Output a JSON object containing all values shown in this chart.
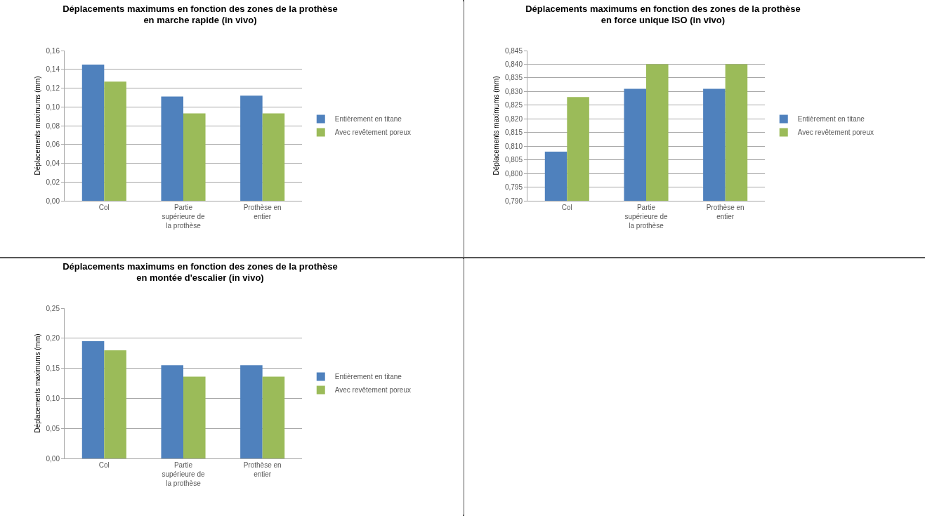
{
  "chart_data": [
    {
      "type": "bar",
      "title": "Déplacements maximums en fonction des zones de la prothèse en marche rapide (in vivo)",
      "ylabel": "Déplacements maximums (mm)",
      "categories": [
        "Col",
        "Partie supérieure de la prothèse",
        "Prothèse en entier"
      ],
      "series": [
        {
          "name": "Entièrement en titane",
          "color": "#4f81bd",
          "values": [
            0.145,
            0.111,
            0.112
          ]
        },
        {
          "name": "Avec revêtement poreux",
          "color": "#9bbb59",
          "values": [
            0.127,
            0.093,
            0.093
          ]
        }
      ],
      "ylim": [
        0,
        0.16
      ],
      "yticks": [
        {
          "value": 0,
          "label": "0,00"
        },
        {
          "value": 0.02,
          "label": "0,02"
        },
        {
          "value": 0.04,
          "label": "0,04"
        },
        {
          "value": 0.06,
          "label": "0,06"
        },
        {
          "value": 0.08,
          "label": "0,08"
        },
        {
          "value": 0.1,
          "label": "0,10"
        },
        {
          "value": 0.12,
          "label": "0,12"
        },
        {
          "value": 0.14,
          "label": "0,14"
        },
        {
          "value": 0.16,
          "label": "0,16"
        }
      ],
      "grid": "y",
      "legend": "right"
    },
    {
      "type": "bar",
      "title": "Déplacements maximums en fonction des zones de la prothèse en force unique ISO (in vivo)",
      "ylabel": "Déplacements maximums (mm)",
      "categories": [
        "Col",
        "Partie supérieure de la prothèse",
        "Prothèse en entier"
      ],
      "series": [
        {
          "name": "Entièrement en titane",
          "color": "#4f81bd",
          "values": [
            0.808,
            0.831,
            0.831
          ]
        },
        {
          "name": "Avec revêtement poreux",
          "color": "#9bbb59",
          "values": [
            0.828,
            0.84,
            0.84
          ]
        }
      ],
      "ylim": [
        0.79,
        0.845
      ],
      "yticks": [
        {
          "value": 0.79,
          "label": "0,790"
        },
        {
          "value": 0.795,
          "label": "0,795"
        },
        {
          "value": 0.8,
          "label": "0,800"
        },
        {
          "value": 0.805,
          "label": "0,805"
        },
        {
          "value": 0.81,
          "label": "0,810"
        },
        {
          "value": 0.815,
          "label": "0,815"
        },
        {
          "value": 0.82,
          "label": "0,820"
        },
        {
          "value": 0.825,
          "label": "0,825"
        },
        {
          "value": 0.83,
          "label": "0,830"
        },
        {
          "value": 0.835,
          "label": "0,835"
        },
        {
          "value": 0.84,
          "label": "0,840"
        },
        {
          "value": 0.845,
          "label": "0,845"
        }
      ],
      "grid": "y",
      "legend": "right"
    },
    {
      "type": "bar",
      "title": "Déplacements maximums en fonction des zones de la prothèse en montée d'escalier (in vivo)",
      "ylabel": "Déplacements maximums (mm)",
      "categories": [
        "Col",
        "Partie supérieure de la prothèse",
        "Prothèse en entier"
      ],
      "series": [
        {
          "name": "Entièrement en titane",
          "color": "#4f81bd",
          "values": [
            0.195,
            0.155,
            0.155
          ]
        },
        {
          "name": "Avec revêtement poreux",
          "color": "#9bbb59",
          "values": [
            0.18,
            0.136,
            0.136
          ]
        }
      ],
      "ylim": [
        0,
        0.25
      ],
      "yticks": [
        {
          "value": 0,
          "label": "0,00"
        },
        {
          "value": 0.05,
          "label": "0,05"
        },
        {
          "value": 0.1,
          "label": "0,10"
        },
        {
          "value": 0.15,
          "label": "0,15"
        },
        {
          "value": 0.2,
          "label": "0,20"
        },
        {
          "value": 0.25,
          "label": "0,25"
        }
      ],
      "grid": "y",
      "legend": "right"
    }
  ]
}
